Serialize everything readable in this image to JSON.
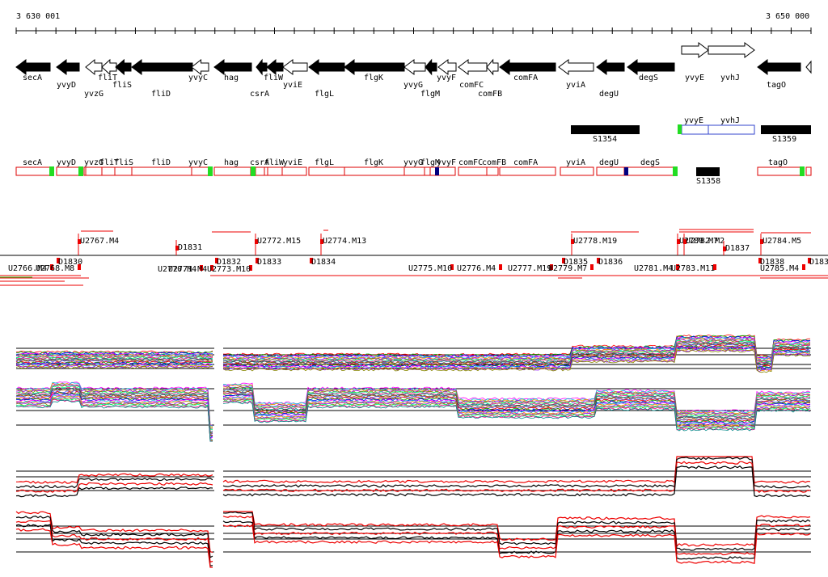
{
  "scale": {
    "start_label": "3 630 001",
    "end_label": "3 650 000"
  },
  "colors": {
    "gene_fill": "#000000",
    "tu_border": "#dd0000",
    "tu_marker_green": "#22dd22",
    "tu_marker_blue": "#000080",
    "segment_red": "#ee0000",
    "operon_blue": "#3344cc",
    "line_black": "#000000",
    "line_red": "#ee0000"
  },
  "genes": [
    {
      "label": "secA",
      "strand": "-",
      "filled": true
    },
    {
      "label": "yvyD",
      "strand": "-",
      "filled": true
    },
    {
      "label": "yvzG",
      "strand": "-",
      "filled": false
    },
    {
      "label": "fliT",
      "strand": "-",
      "filled": false
    },
    {
      "label": "fliS",
      "strand": "-",
      "filled": true
    },
    {
      "label": "fliD",
      "strand": "-",
      "filled": true
    },
    {
      "label": "yvyC",
      "strand": "-",
      "filled": false
    },
    {
      "label": "hag",
      "strand": "-",
      "filled": true
    },
    {
      "label": "csrA",
      "strand": "-",
      "filled": true
    },
    {
      "label": "fliW",
      "strand": "-",
      "filled": true
    },
    {
      "label": "yviE",
      "strand": "-",
      "filled": false
    },
    {
      "label": "flgL",
      "strand": "-",
      "filled": true
    },
    {
      "label": "flgK",
      "strand": "-",
      "filled": true
    },
    {
      "label": "yvyG",
      "strand": "-",
      "filled": false
    },
    {
      "label": "flgM",
      "strand": "-",
      "filled": true
    },
    {
      "label": "yvyF",
      "strand": "-",
      "filled": false
    },
    {
      "label": "comFC",
      "strand": "-",
      "filled": false
    },
    {
      "label": "comFB",
      "strand": "-",
      "filled": false
    },
    {
      "label": "comFA",
      "strand": "-",
      "filled": true
    },
    {
      "label": "yviA",
      "strand": "-",
      "filled": false
    },
    {
      "label": "degU",
      "strand": "-",
      "filled": true
    },
    {
      "label": "degS",
      "strand": "-",
      "filled": true
    },
    {
      "label": "yvyE",
      "strand": "+",
      "filled": false
    },
    {
      "label": "yvhJ",
      "strand": "+",
      "filled": false
    },
    {
      "label": "tagO",
      "strand": "-",
      "filled": true
    }
  ],
  "s_segments": [
    {
      "label": "S1354"
    },
    {
      "label": "S1359"
    },
    {
      "label": "S1358"
    }
  ],
  "operon_box": {
    "labels": [
      "yvyE",
      "yvhJ"
    ]
  },
  "tu_labels": [
    "secA",
    "yvyD",
    "yvzG",
    "fliT",
    "fliS",
    "fliD",
    "yvyC",
    "hag",
    "csrA",
    "fliW",
    "yviE",
    "flgL",
    "flgK",
    "yvyG",
    "flgM",
    "yvyF",
    "comFC",
    "comFB",
    "comFA",
    "yviA",
    "degU",
    "degS",
    "tagO"
  ],
  "features_up": [
    "U2767.M4",
    "D1831",
    "U2772.M15",
    "U2774.M13",
    "U2778.M19",
    "U2780.M7",
    "U2782.M2",
    "D1837",
    "U2784.M5"
  ],
  "features_down": [
    "U2766.M4",
    "U2768.M8",
    "D1830",
    "U2770.M4",
    "U2771.M4",
    "U2773.M10",
    "D1832",
    "D1833",
    "D1834",
    "U2775.M10",
    "U2776.M4",
    "U2777.M19",
    "U2779.M7",
    "D1835",
    "D1836",
    "U2781.M4",
    "U2783.M11",
    "D1838",
    "U2785.M4",
    "D183"
  ]
}
